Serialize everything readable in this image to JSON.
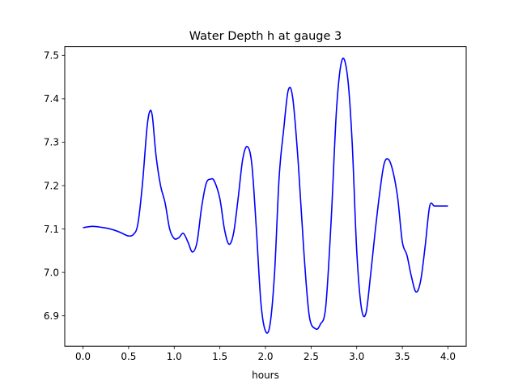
{
  "chart_data": {
    "type": "line",
    "title": "Water Depth h at gauge 3",
    "xlabel": "hours",
    "ylabel": "",
    "xlim": [
      -0.2,
      4.2
    ],
    "ylim": [
      6.83,
      7.52
    ],
    "xticks": [
      0.0,
      0.5,
      1.0,
      1.5,
      2.0,
      2.5,
      3.0,
      3.5,
      4.0
    ],
    "xtick_labels": [
      "0.0",
      "0.5",
      "1.0",
      "1.5",
      "2.0",
      "2.5",
      "3.0",
      "3.5",
      "4.0"
    ],
    "yticks": [
      6.9,
      7.0,
      7.1,
      7.2,
      7.3,
      7.4,
      7.5
    ],
    "ytick_labels": [
      "6.9",
      "7.0",
      "7.1",
      "7.2",
      "7.3",
      "7.4",
      "7.5"
    ],
    "grid": false,
    "legend": "none",
    "series": [
      {
        "color": "#0000ff",
        "x": [
          0.0,
          0.1,
          0.2,
          0.3,
          0.4,
          0.45,
          0.5,
          0.55,
          0.6,
          0.65,
          0.7,
          0.73,
          0.76,
          0.8,
          0.85,
          0.9,
          0.95,
          1.0,
          1.05,
          1.1,
          1.15,
          1.2,
          1.25,
          1.3,
          1.35,
          1.4,
          1.44,
          1.5,
          1.55,
          1.6,
          1.65,
          1.7,
          1.75,
          1.8,
          1.85,
          1.9,
          1.95,
          2.0,
          2.05,
          2.1,
          2.15,
          2.2,
          2.25,
          2.3,
          2.36,
          2.42,
          2.48,
          2.55,
          2.6,
          2.66,
          2.72,
          2.78,
          2.84,
          2.9,
          2.95,
          3.0,
          3.05,
          3.1,
          3.15,
          3.2,
          3.25,
          3.3,
          3.35,
          3.4,
          3.45,
          3.5,
          3.55,
          3.6,
          3.65,
          3.7,
          3.75,
          3.8,
          3.85,
          3.9,
          3.95,
          4.0
        ],
        "y": [
          7.103,
          7.106,
          7.104,
          7.1,
          7.093,
          7.088,
          7.084,
          7.087,
          7.11,
          7.2,
          7.33,
          7.37,
          7.36,
          7.27,
          7.2,
          7.16,
          7.1,
          7.078,
          7.08,
          7.09,
          7.07,
          7.047,
          7.07,
          7.15,
          7.205,
          7.215,
          7.21,
          7.17,
          7.1,
          7.065,
          7.09,
          7.17,
          7.26,
          7.29,
          7.25,
          7.1,
          6.93,
          6.865,
          6.88,
          7.0,
          7.22,
          7.33,
          7.42,
          7.4,
          7.25,
          7.05,
          6.9,
          6.87,
          6.88,
          6.92,
          7.12,
          7.38,
          7.49,
          7.45,
          7.3,
          7.05,
          6.92,
          6.905,
          6.99,
          7.09,
          7.18,
          7.25,
          7.26,
          7.23,
          7.17,
          7.07,
          7.04,
          6.99,
          6.955,
          6.98,
          7.06,
          7.153,
          7.153,
          7.153,
          7.153,
          7.153
        ]
      }
    ]
  }
}
